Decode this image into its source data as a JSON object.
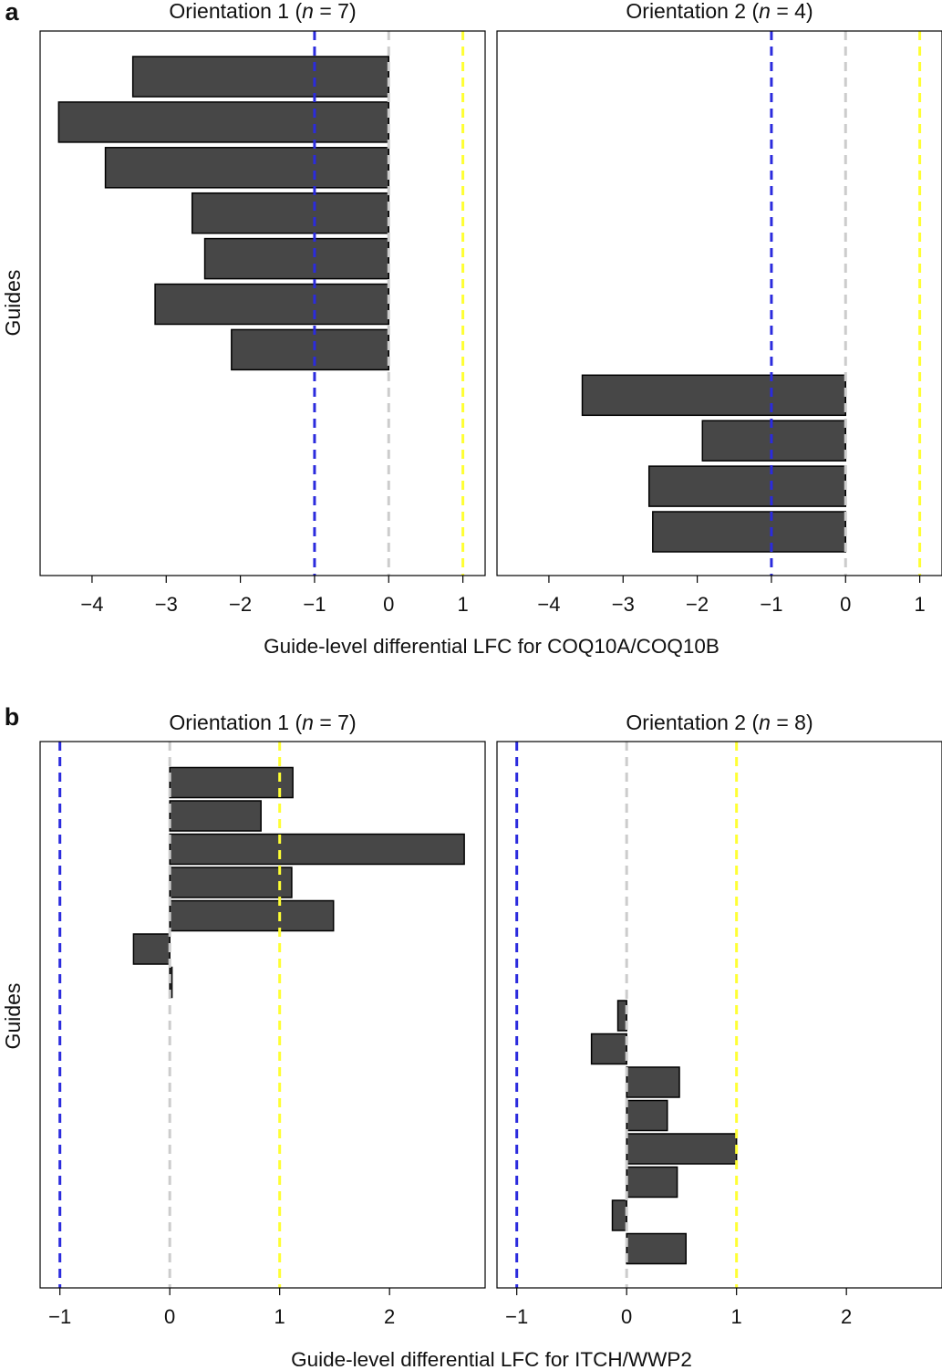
{
  "chart_data": [
    {
      "panel_letter": "a",
      "type": "bar",
      "orientation": "horizontal",
      "xlabel": "Guide-level differential LFC for COQ10A/COQ10B",
      "ylabel": "Guides",
      "xlim": [
        -4.7,
        1.3
      ],
      "xticks": [
        -4,
        -3,
        -2,
        -1,
        0,
        1
      ],
      "xtick_labels": [
        "−4",
        "−3",
        "−2",
        "−1",
        "0",
        "1"
      ],
      "reference_lines": [
        {
          "value": -1,
          "color": "#2b2bdd"
        },
        {
          "value": 0,
          "color": "#cccccc"
        },
        {
          "value": 1,
          "color": "#ffff33"
        }
      ],
      "bar_color": "#474747",
      "bar_edge_color": "#000000",
      "total_guide_slots": 11,
      "subplots": [
        {
          "title_prefix": "Orientation 1 (",
          "title_n": "n",
          "title_suffix": " = 7)",
          "guide_offset": 0,
          "values": [
            -3.45,
            -4.45,
            -3.82,
            -2.65,
            -2.48,
            -3.15,
            -2.12
          ]
        },
        {
          "title_prefix": "Orientation 2 (",
          "title_n": "n",
          "title_suffix": " = 4)",
          "guide_offset": 7,
          "values": [
            -3.55,
            -1.93,
            -2.65,
            -2.6
          ]
        }
      ]
    },
    {
      "panel_letter": "b",
      "type": "bar",
      "orientation": "horizontal",
      "xlabel": "Guide-level differential LFC for ITCH/WWP2",
      "ylabel": "Guides",
      "xlim": [
        -1.18,
        2.87
      ],
      "xticks": [
        -1,
        0,
        1,
        2
      ],
      "xtick_labels": [
        "−1",
        "0",
        "1",
        "2"
      ],
      "reference_lines": [
        {
          "value": -1,
          "color": "#2b2bdd"
        },
        {
          "value": 0,
          "color": "#cccccc"
        },
        {
          "value": 1,
          "color": "#ffff33"
        }
      ],
      "bar_color": "#474747",
      "bar_edge_color": "#000000",
      "total_guide_slots": 15,
      "subplots": [
        {
          "title_prefix": "Orientation 1 (",
          "title_n": "n",
          "title_suffix": " = 7)",
          "guide_offset": 0,
          "values": [
            1.12,
            0.83,
            2.68,
            1.11,
            1.49,
            -0.33,
            0.02
          ]
        },
        {
          "title_prefix": "Orientation 2 (",
          "title_n": "n",
          "title_suffix": " = 8)",
          "guide_offset": 7,
          "values": [
            -0.08,
            -0.32,
            0.48,
            0.37,
            1.0,
            0.46,
            -0.13,
            0.54
          ]
        }
      ]
    }
  ]
}
